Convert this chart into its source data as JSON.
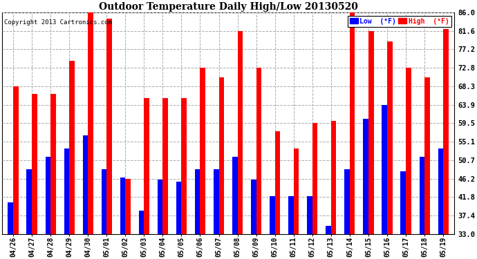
{
  "title": "Outdoor Temperature Daily High/Low 20130520",
  "copyright": "Copyright 2013 Cartronics.com",
  "dates": [
    "04/26",
    "04/27",
    "04/28",
    "04/29",
    "04/30",
    "05/01",
    "05/02",
    "05/03",
    "05/04",
    "05/05",
    "05/06",
    "05/07",
    "05/08",
    "05/09",
    "05/10",
    "05/11",
    "05/12",
    "05/13",
    "05/14",
    "05/15",
    "05/16",
    "05/17",
    "05/18",
    "05/19"
  ],
  "highs": [
    68.3,
    66.5,
    66.5,
    74.5,
    86.0,
    84.5,
    46.2,
    65.5,
    65.5,
    65.5,
    72.8,
    70.5,
    81.6,
    72.8,
    57.5,
    53.5,
    59.5,
    60.0,
    86.0,
    81.6,
    79.0,
    72.8,
    70.5,
    82.0
  ],
  "lows": [
    40.5,
    48.5,
    51.5,
    53.5,
    56.5,
    48.5,
    46.5,
    38.5,
    46.0,
    45.5,
    48.5,
    48.5,
    51.5,
    46.0,
    42.0,
    42.0,
    42.0,
    35.0,
    48.5,
    60.5,
    63.9,
    48.0,
    51.5,
    53.5
  ],
  "bar_color_high": "#ff0000",
  "bar_color_low": "#0000ff",
  "background_color": "#ffffff",
  "grid_color": "#aaaaaa",
  "ylabel_right": [
    "33.0",
    "37.4",
    "41.8",
    "46.2",
    "50.7",
    "55.1",
    "59.5",
    "63.9",
    "68.3",
    "72.8",
    "77.2",
    "81.6",
    "86.0"
  ],
  "yticks": [
    33.0,
    37.4,
    41.8,
    46.2,
    50.7,
    55.1,
    59.5,
    63.9,
    68.3,
    72.8,
    77.2,
    81.6,
    86.0
  ],
  "ylim": [
    33.0,
    86.0
  ],
  "ymin": 33.0,
  "legend_low_label": "Low  (°F)",
  "legend_high_label": "High  (°F)",
  "bar_width": 0.28
}
